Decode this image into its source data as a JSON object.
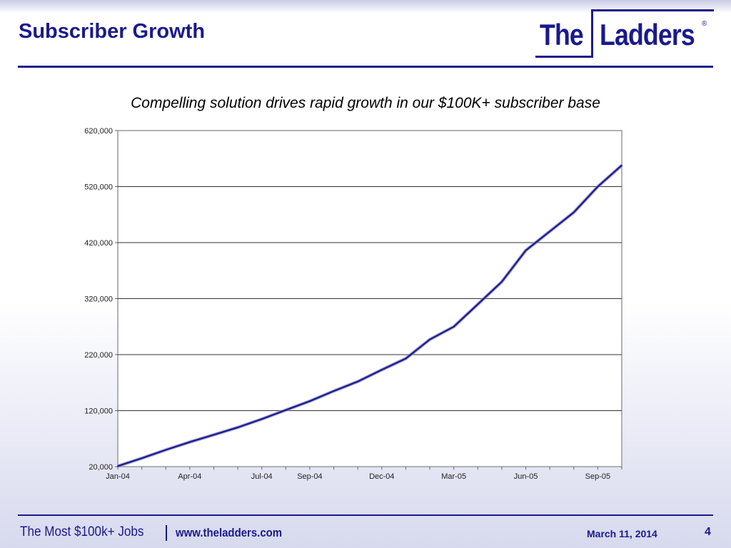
{
  "slide": {
    "title": "Subscriber Growth",
    "subtitle": "Compelling solution drives rapid growth in our $100K+ subscriber base",
    "logo_word1": "The",
    "logo_word2": "Ladders",
    "logo_mark": "®"
  },
  "footer": {
    "tagline": "The Most $100k+ Jobs",
    "url": "www.theladders.com",
    "date": "March 11, 2014",
    "page": "4"
  },
  "colors": {
    "brand": "#1a1a8c",
    "line": "#1f1f8f",
    "grid": "#333333"
  },
  "chart_data": {
    "type": "line",
    "title": "",
    "xlabel": "",
    "ylabel": "",
    "grid": true,
    "legend": "none",
    "ylim": [
      20000,
      620000
    ],
    "yticks": [
      "20,000",
      "120,000",
      "220,000",
      "320,000",
      "420,000",
      "520,000",
      "620,000"
    ],
    "xticks": [
      "Jan-04",
      "Apr-04",
      "Jul-04",
      "Sep-04",
      "Dec-04",
      "Mar-05",
      "Jun-05",
      "Sep-05"
    ],
    "x": [
      "Jan-04",
      "Feb-04",
      "Mar-04",
      "Apr-04",
      "May-04",
      "Jun-04",
      "Jul-04",
      "Aug-04",
      "Sep-04",
      "Oct-04",
      "Nov-04",
      "Dec-04",
      "Jan-05",
      "Feb-05",
      "Mar-05",
      "Apr-05",
      "May-05",
      "Jun-05",
      "Jul-05",
      "Aug-05",
      "Sep-05",
      "Oct-05"
    ],
    "series": [
      {
        "values": [
          21000,
          35000,
          50000,
          64000,
          77000,
          90000,
          105000,
          121000,
          137000,
          155000,
          172000,
          193000,
          213000,
          247000,
          270000,
          310000,
          350000,
          406000,
          440000,
          474000,
          520000,
          558000
        ]
      }
    ]
  }
}
